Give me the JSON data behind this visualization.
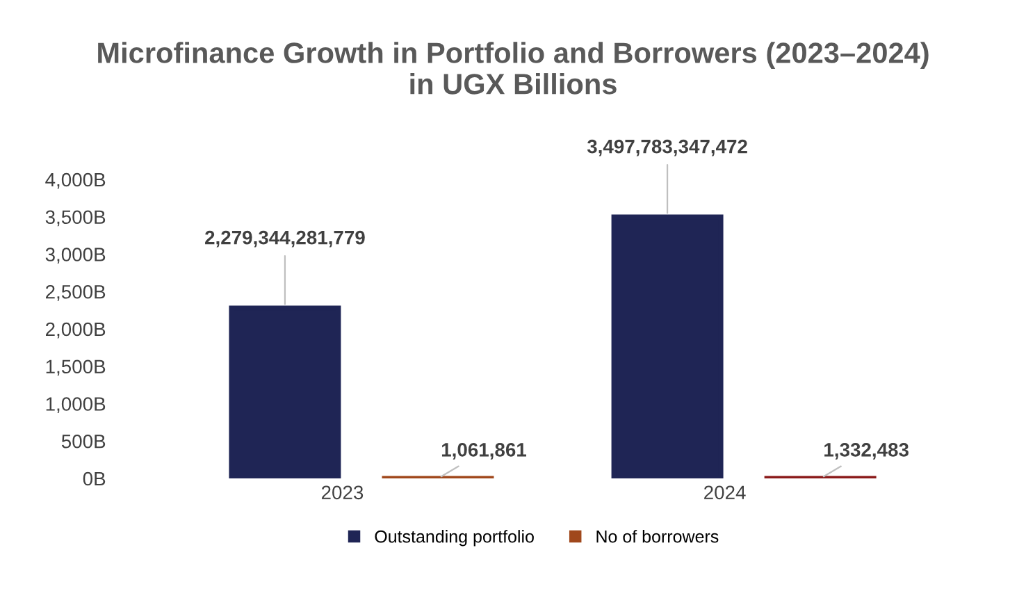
{
  "chart_data": {
    "type": "bar",
    "title": "Microfinance Growth in Portfolio and Borrowers (2023–2024)\nin UGX Billions",
    "categories": [
      "2023",
      "2024"
    ],
    "series": [
      {
        "name": "Outstanding portfolio",
        "color": "#1f2555",
        "values": [
          2279344281779,
          3497783347472
        ],
        "value_labels": [
          "2,279,344,281,779",
          "3,497,783,347,472"
        ]
      },
      {
        "name": "No of borrowers",
        "color": "#a0481c",
        "colors": [
          "#a0481c",
          "#8b1a1a"
        ],
        "values": [
          1061861,
          1332483
        ],
        "value_labels": [
          "1,061,861",
          "1,332,483"
        ]
      }
    ],
    "ylim": [
      0,
      4000000000000
    ],
    "yticks": [
      {
        "value": 0,
        "label": "0B"
      },
      {
        "value": 500000000000,
        "label": "500B"
      },
      {
        "value": 1000000000000,
        "label": "1,000B"
      },
      {
        "value": 1500000000000,
        "label": "1,500B"
      },
      {
        "value": 2000000000000,
        "label": "2,000B"
      },
      {
        "value": 2500000000000,
        "label": "2,500B"
      },
      {
        "value": 3000000000000,
        "label": "3,000B"
      },
      {
        "value": 3500000000000,
        "label": "3,500B"
      },
      {
        "value": 4000000000000,
        "label": "4,000B"
      }
    ],
    "grid": false,
    "legend": "bottom"
  }
}
